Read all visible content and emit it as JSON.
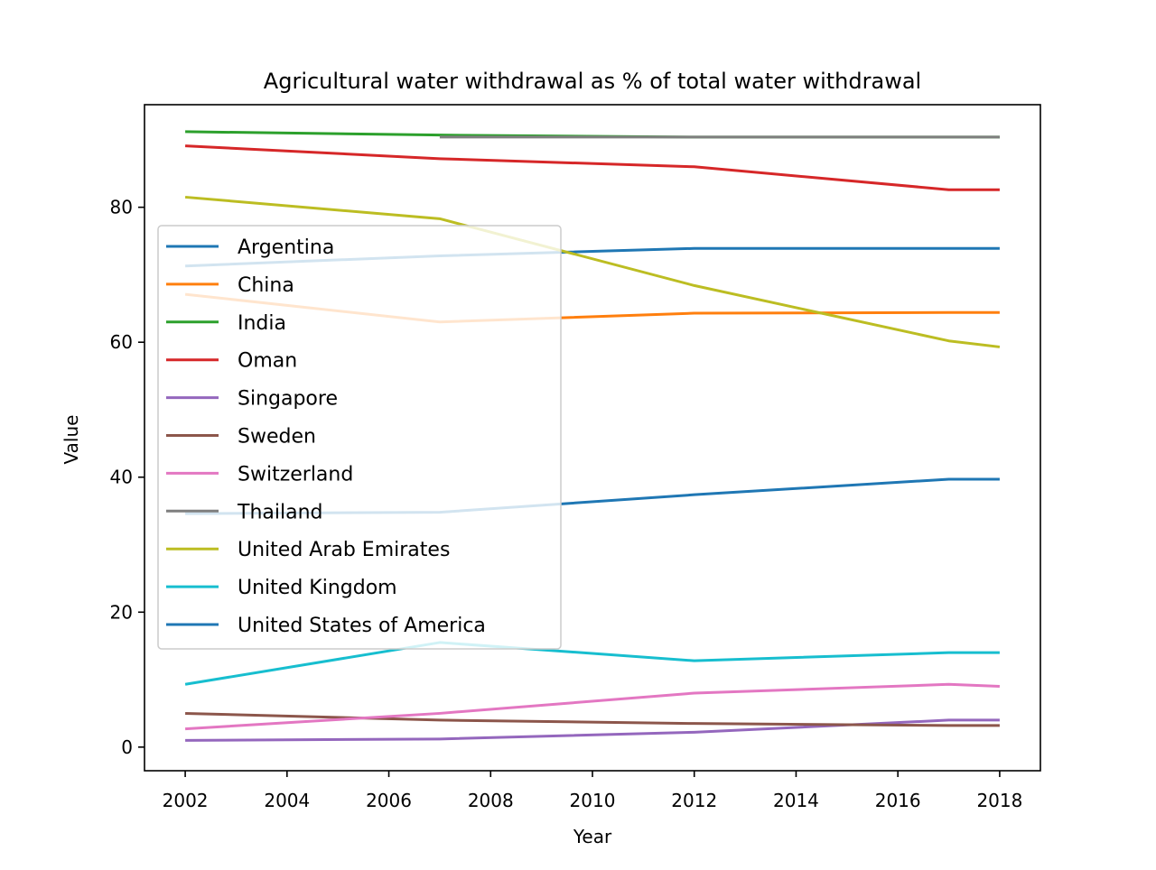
{
  "chart_data": {
    "type": "line",
    "title": "Agricultural water withdrawal as % of total water withdrawal",
    "xlabel": "Year",
    "ylabel": "Value",
    "xlim": [
      2001.2,
      2018.8
    ],
    "ylim": [
      -3.5,
      95.2
    ],
    "xticks": [
      2002,
      2004,
      2006,
      2008,
      2010,
      2012,
      2014,
      2016,
      2018
    ],
    "yticks": [
      0,
      20,
      40,
      60,
      80
    ],
    "grid": false,
    "legend_position": "upper-left",
    "series": [
      {
        "name": "Argentina",
        "color": "#1f77b4",
        "x": [
          2002,
          2007,
          2012,
          2017,
          2018
        ],
        "y": [
          71.3,
          72.8,
          73.9,
          73.9,
          73.9
        ]
      },
      {
        "name": "China",
        "color": "#ff7f0e",
        "x": [
          2002,
          2007,
          2012,
          2017,
          2018
        ],
        "y": [
          67.1,
          63.0,
          64.3,
          64.4,
          64.4
        ]
      },
      {
        "name": "India",
        "color": "#2ca02c",
        "x": [
          2002,
          2007,
          2012,
          2017,
          2018
        ],
        "y": [
          91.2,
          90.7,
          90.4,
          90.4,
          90.4
        ]
      },
      {
        "name": "Oman",
        "color": "#d62728",
        "x": [
          2002,
          2007,
          2012,
          2017,
          2018
        ],
        "y": [
          89.1,
          87.2,
          86.0,
          82.6,
          82.6
        ]
      },
      {
        "name": "Singapore",
        "color": "#9467bd",
        "x": [
          2002,
          2007,
          2012,
          2017,
          2018
        ],
        "y": [
          1.0,
          1.2,
          2.2,
          4.0,
          4.0
        ]
      },
      {
        "name": "Sweden",
        "color": "#8c564b",
        "x": [
          2002,
          2007,
          2012,
          2017,
          2018
        ],
        "y": [
          5.0,
          4.0,
          3.5,
          3.2,
          3.2
        ]
      },
      {
        "name": "Switzerland",
        "color": "#e377c2",
        "x": [
          2002,
          2007,
          2012,
          2017,
          2018
        ],
        "y": [
          2.7,
          5.0,
          8.0,
          9.3,
          9.0
        ]
      },
      {
        "name": "Thailand",
        "color": "#7f7f7f",
        "x": [
          2007,
          2012,
          2017,
          2018
        ],
        "y": [
          90.4,
          90.4,
          90.4,
          90.4
        ]
      },
      {
        "name": "United Arab Emirates",
        "color": "#bcbd22",
        "x": [
          2002,
          2007,
          2012,
          2017,
          2018
        ],
        "y": [
          81.5,
          78.3,
          68.4,
          60.2,
          59.3
        ]
      },
      {
        "name": "United Kingdom",
        "color": "#17becf",
        "x": [
          2002,
          2007,
          2012,
          2017,
          2018
        ],
        "y": [
          9.3,
          15.5,
          12.8,
          14.0,
          14.0
        ]
      },
      {
        "name": "United States of America",
        "color": "#1f77b4",
        "x": [
          2002,
          2007,
          2012,
          2017,
          2018
        ],
        "y": [
          34.6,
          34.8,
          37.4,
          39.7,
          39.7
        ]
      }
    ]
  }
}
